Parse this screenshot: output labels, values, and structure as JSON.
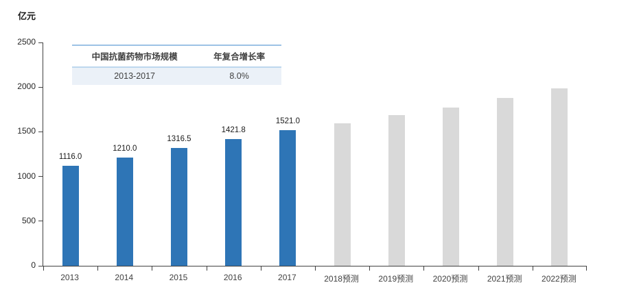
{
  "unit_label": "亿元",
  "chart_data": {
    "type": "bar",
    "title": "",
    "ylabel_unit": "亿元",
    "xlabel": "",
    "categories": [
      "2013",
      "2014",
      "2015",
      "2016",
      "2017",
      "2018预测",
      "2019预测",
      "2020预测",
      "2021预测",
      "2022预测"
    ],
    "values": [
      1116.0,
      1210.0,
      1316.5,
      1421.8,
      1521.0,
      1595,
      1685,
      1775,
      1880,
      1985
    ],
    "value_labels": [
      "1116.0",
      "1210.0",
      "1316.5",
      "1421.8",
      "1521.0",
      "",
      "",
      "",
      "",
      ""
    ],
    "actual_count": 5,
    "actual_color": "#2E75B6",
    "forecast_color": "#D9D9D9",
    "ylim": [
      0,
      2500
    ],
    "yticks": [
      0,
      500,
      1000,
      1500,
      2000,
      2500
    ],
    "grid": false,
    "legend_position": "none",
    "axis_color": "#404040"
  },
  "cagr_table": {
    "headers": [
      "中国抗菌药物市场规模",
      "年复合增长率"
    ],
    "row": [
      "2013-2017",
      "8.0%"
    ],
    "accent_top_color": "#9CC2E5",
    "accent_divider_color": "#BDD7EE",
    "row_bg_color": "#EBF1F8"
  }
}
